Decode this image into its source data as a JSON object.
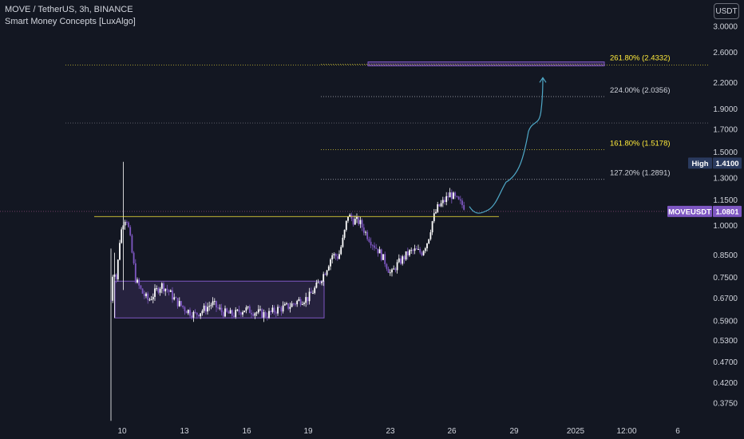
{
  "header": {
    "symbol_line": "MOVE / TetherUS, 3h, BINANCE",
    "indicator_line": "Smart Money Concepts [LuxAlgo]"
  },
  "currency_button": "USDT",
  "colors": {
    "background": "#131722",
    "candle": "#7e57c2",
    "candle_bright": "#ffffff",
    "fib_yellow": "#ffeb3b",
    "fib_white": "#d1d4dc",
    "box": "#7e57c2",
    "projection": "#4fa8c7",
    "price_badge": "#7e57c2",
    "high_badge": "#2a3a5e"
  },
  "chart_data": {
    "type": "candlestick",
    "y_axis": {
      "scale": "log",
      "ticks": [
        "3.0000",
        "2.6000",
        "2.2000",
        "1.9000",
        "1.7000",
        "1.5000",
        "1.3000",
        "1.1500",
        "1.0000",
        "0.8500",
        "0.7500",
        "0.6700",
        "0.5900",
        "0.5300",
        "0.4700",
        "0.4200",
        "0.3750"
      ],
      "range": [
        0.34,
        3.15
      ]
    },
    "x_axis": {
      "ticks": [
        "10",
        "13",
        "16",
        "19",
        "23",
        "26",
        "29",
        "2025",
        "12:00",
        "6"
      ]
    },
    "fib_levels": [
      {
        "label": "261.80% (2.4332)",
        "value": 2.4332,
        "color": "yellow"
      },
      {
        "label": "224.00% (2.0356)",
        "value": 2.0356,
        "color": "white"
      },
      {
        "label": "161.80% (1.5178)",
        "value": 1.5178,
        "color": "yellow"
      },
      {
        "label": "127.20% (1.2891)",
        "value": 1.2891,
        "color": "white"
      }
    ],
    "current_price": {
      "symbol": "MOVEUSDT",
      "value": "1.0801"
    },
    "high_marker": {
      "label": "High",
      "value": "1.4100"
    },
    "accumulation_box": {
      "price_low": 0.6,
      "price_high": 0.735
    },
    "support_line_price": 1.05
  }
}
